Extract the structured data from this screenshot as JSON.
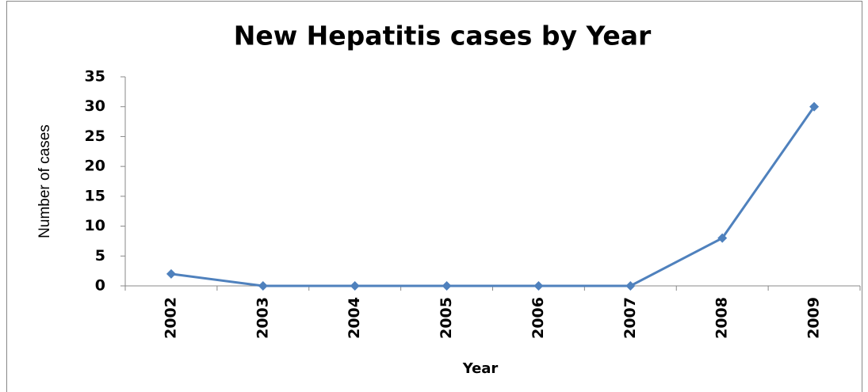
{
  "chart_data": {
    "type": "line",
    "title": "New Hepatitis cases by Year",
    "x_label": "Year",
    "y_label": "Number of cases",
    "categories": [
      "2002",
      "2003",
      "2004",
      "2005",
      "2006",
      "2007",
      "2008",
      "2009"
    ],
    "values": [
      2,
      0,
      0,
      0,
      0,
      0,
      8,
      30
    ],
    "color": "#4f81bd",
    "ylim": [
      0,
      35
    ],
    "yticks": [
      0,
      5,
      10,
      15,
      20,
      25,
      30,
      35
    ],
    "grid": false
  }
}
